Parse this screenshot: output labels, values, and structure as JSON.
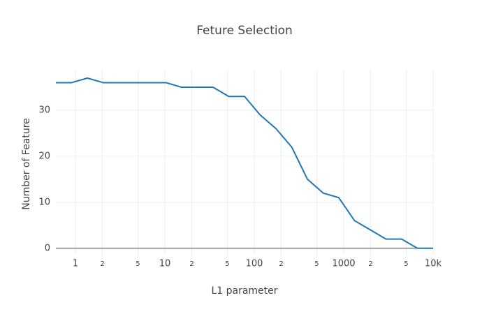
{
  "chart_data": {
    "type": "line",
    "title": "Feture Selection",
    "x_label": "L1 parameter",
    "y_label": "Number of Feature",
    "x": [
      0.604,
      0.906,
      1.358,
      2.04,
      3.05,
      4.57,
      6.86,
      10.3,
      15.4,
      23.1,
      34.6,
      51.9,
      77.8,
      116,
      175,
      262,
      393,
      589,
      881,
      1321,
      1982,
      2972,
      4448,
      6668,
      10000
    ],
    "series": [
      {
        "color": "#1f77b4",
        "values": [
          36,
          36,
          37,
          36,
          36,
          36,
          36,
          36,
          35,
          35,
          35,
          33,
          33,
          29,
          26,
          22,
          15,
          12,
          11,
          6,
          4,
          2,
          2,
          0,
          0
        ]
      }
    ],
    "xscale": "log",
    "xlim": [
      0.604,
      10000
    ],
    "xticks": [
      1,
      2,
      5,
      10,
      {
        "value": 20,
        "label": "2"
      },
      {
        "value": 50,
        "label": "5"
      },
      100,
      {
        "value": 200,
        "label": "2"
      },
      {
        "value": 500,
        "label": "5"
      },
      1000,
      {
        "value": 2000,
        "label": "2"
      },
      {
        "value": 5000,
        "label": "5"
      },
      {
        "value": 10000,
        "label": "10k"
      }
    ],
    "ylim": [
      -1.4,
      38.8
    ],
    "yticks": [
      0,
      10,
      20,
      30
    ],
    "grid": true
  }
}
